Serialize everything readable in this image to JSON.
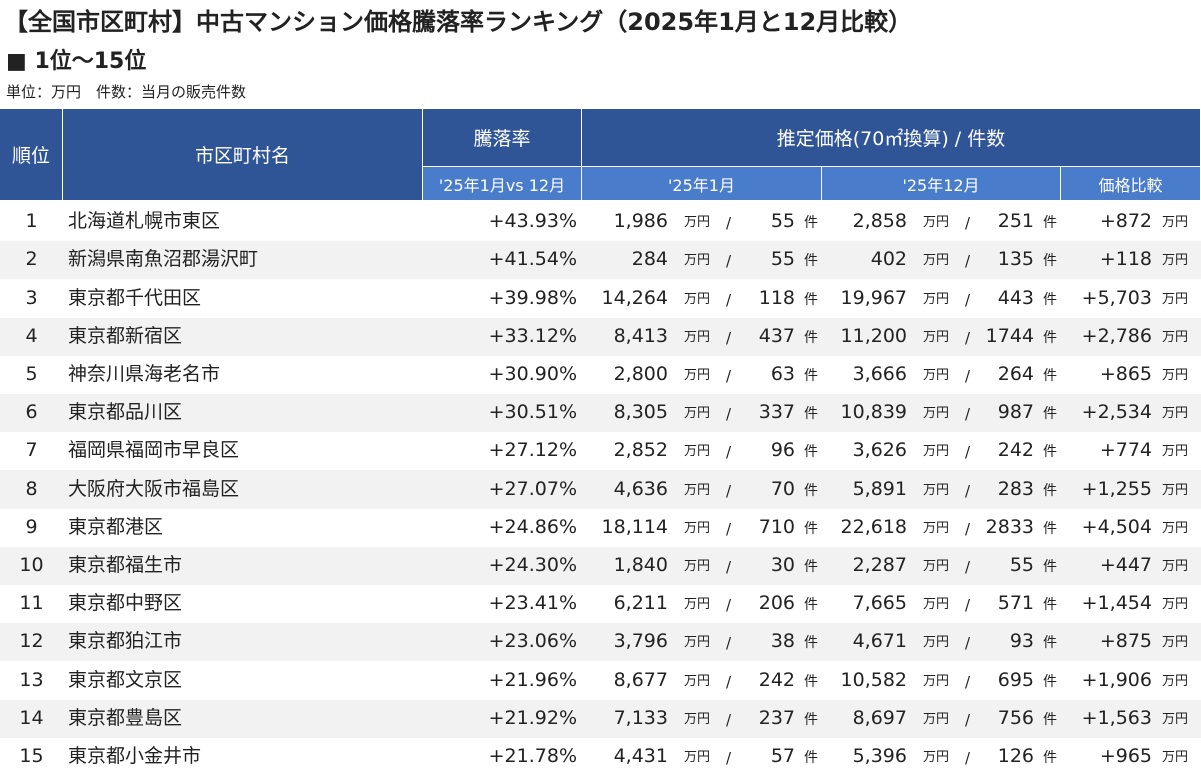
{
  "header": {
    "title": "【全国市区町村】中古マンション価格騰落率ランキング（2025年1月と12月比較）",
    "subtitle": "■ 1位～15位",
    "note": "単位：万円　件数：当月の販売件数"
  },
  "table": {
    "head": {
      "rank": "順位",
      "name": "市区町村名",
      "rate": "騰落率",
      "rate_sub": "'25年1月vs 12月",
      "price_group": "推定価格(70㎡換算) / 件数",
      "jan": "'25年1月",
      "dec": "'25年12月",
      "diff": "価格比較"
    },
    "units": {
      "price": "万円",
      "slash": "/",
      "count": "件"
    },
    "rows": [
      [
        "1",
        "北海道札幌市東区",
        "+43.93%",
        "1,986",
        "55",
        "2,858",
        "251",
        "+872"
      ],
      [
        "2",
        "新潟県南魚沼郡湯沢町",
        "+41.54%",
        "284",
        "55",
        "402",
        "135",
        "+118"
      ],
      [
        "3",
        "東京都千代田区",
        "+39.98%",
        "14,264",
        "118",
        "19,967",
        "443",
        "+5,703"
      ],
      [
        "4",
        "東京都新宿区",
        "+33.12%",
        "8,413",
        "437",
        "11,200",
        "1744",
        "+2,786"
      ],
      [
        "5",
        "神奈川県海老名市",
        "+30.90%",
        "2,800",
        "63",
        "3,666",
        "264",
        "+865"
      ],
      [
        "6",
        "東京都品川区",
        "+30.51%",
        "8,305",
        "337",
        "10,839",
        "987",
        "+2,534"
      ],
      [
        "7",
        "福岡県福岡市早良区",
        "+27.12%",
        "2,852",
        "96",
        "3,626",
        "242",
        "+774"
      ],
      [
        "8",
        "大阪府大阪市福島区",
        "+27.07%",
        "4,636",
        "70",
        "5,891",
        "283",
        "+1,255"
      ],
      [
        "9",
        "東京都港区",
        "+24.86%",
        "18,114",
        "710",
        "22,618",
        "2833",
        "+4,504"
      ],
      [
        "10",
        "東京都福生市",
        "+24.30%",
        "1,840",
        "30",
        "2,287",
        "55",
        "+447"
      ],
      [
        "11",
        "東京都中野区",
        "+23.41%",
        "6,211",
        "206",
        "7,665",
        "571",
        "+1,454"
      ],
      [
        "12",
        "東京都狛江市",
        "+23.06%",
        "3,796",
        "38",
        "4,671",
        "93",
        "+875"
      ],
      [
        "13",
        "東京都文京区",
        "+21.96%",
        "8,677",
        "242",
        "10,582",
        "695",
        "+1,906"
      ],
      [
        "14",
        "東京都豊島区",
        "+21.92%",
        "7,133",
        "237",
        "8,697",
        "756",
        "+1,563"
      ],
      [
        "15",
        "東京都小金井市",
        "+21.78%",
        "4,431",
        "57",
        "5,396",
        "126",
        "+965"
      ]
    ]
  }
}
